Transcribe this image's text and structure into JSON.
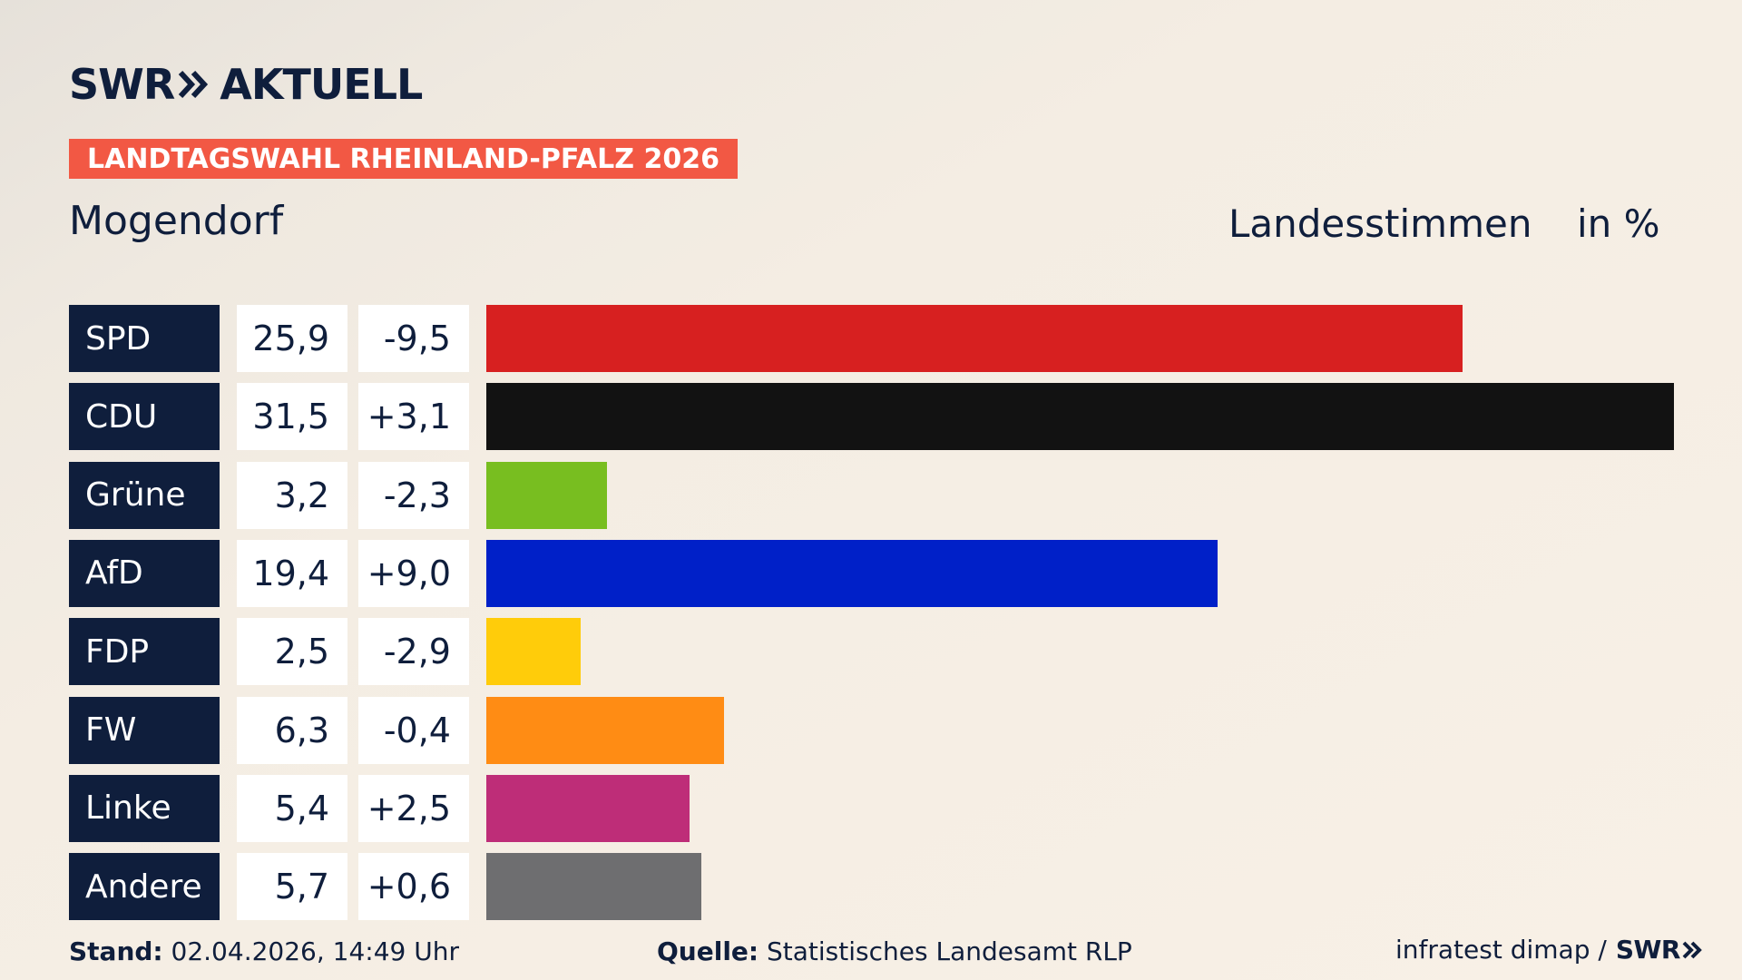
{
  "brand": {
    "name": "SWR",
    "product": "AKTUELL",
    "small_logo": "SWR"
  },
  "election_tag": "LANDTAGSWAHL RHEINLAND-PFALZ 2026",
  "location": "Mogendorf",
  "header": {
    "label": "Landesstimmen",
    "unit": "in %"
  },
  "chart_data": {
    "type": "bar",
    "orientation": "horizontal",
    "categories": [
      "SPD",
      "CDU",
      "Grüne",
      "AfD",
      "FDP",
      "FW",
      "Linke",
      "Andere"
    ],
    "values": [
      25.9,
      31.5,
      3.2,
      19.4,
      2.5,
      6.3,
      5.4,
      5.7
    ],
    "value_labels": [
      "25,9",
      "31,5",
      "3,2",
      "19,4",
      "2,5",
      "6,3",
      "5,4",
      "5,7"
    ],
    "diff_labels": [
      "-9,5",
      "+3,1",
      "-2,3",
      "+9,0",
      "-2,9",
      "-0,4",
      "+2,5",
      "+0,6"
    ],
    "colors": [
      "#d72020",
      "#121212",
      "#78be20",
      "#0020c8",
      "#ffcc0a",
      "#ff8c14",
      "#be2d78",
      "#6e6e70"
    ],
    "xlim": [
      0,
      31.5
    ],
    "grid": false,
    "legend": "none"
  },
  "footer": {
    "stand_label": "Stand:",
    "stand_value": "02.04.2026, 14:49 Uhr",
    "source_label": "Quelle:",
    "source_value": "Statistisches Landesamt RLP",
    "credit": "infratest dimap /"
  },
  "colors": {
    "navy": "#0f1e3c",
    "accent": "#f25844"
  }
}
